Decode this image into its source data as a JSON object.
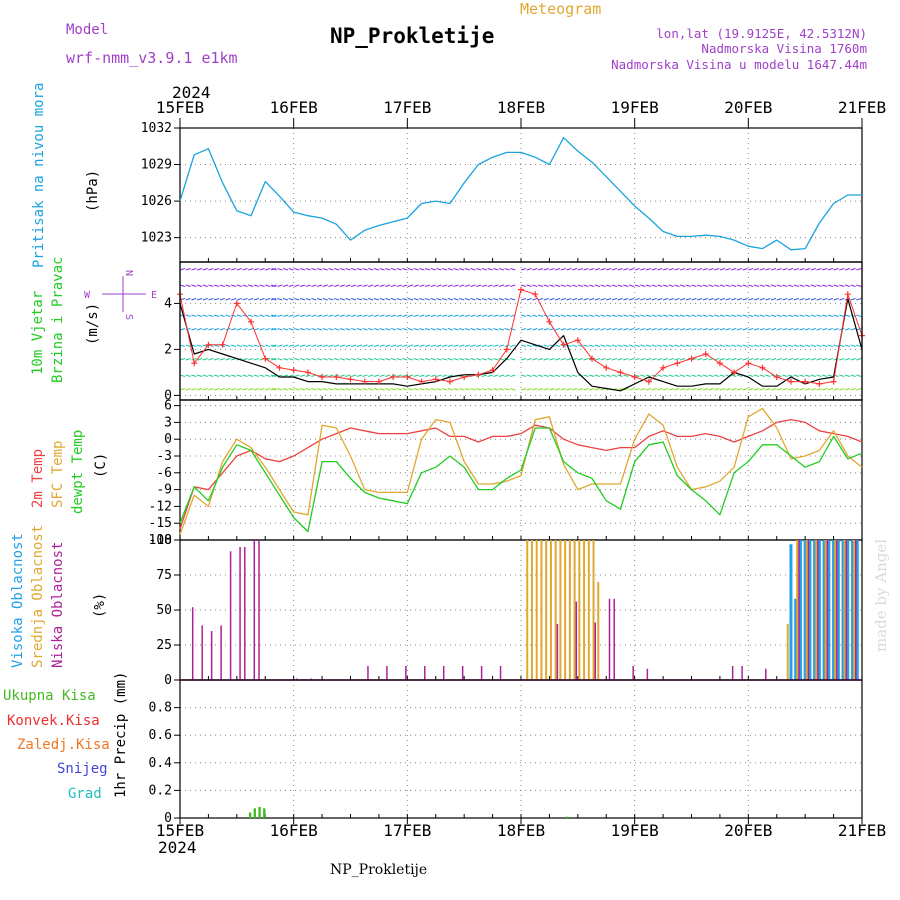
{
  "header": {
    "model_label": "Model",
    "model_name": "wrf-nmm_v3.9.1  e1km",
    "title": "NP_Prokletije",
    "subtitle": "Meteogram",
    "lonlat": "lon,lat (19.9125E, 42.5312N)",
    "altitude": "Nadmorska Visina 1760m",
    "model_altitude": "Nadmorska Visina u modelu 1647.44m",
    "year_top": "2024",
    "year_bottom": "2024",
    "footer": "NP_Prokletije",
    "watermark": "made by Angel"
  },
  "colors": {
    "pressure": "#1aa3df",
    "wind_black": "#000000",
    "wind_red": "#ff3030",
    "t2m": "#ef4040",
    "sfc": "#e0a830",
    "dewpt": "#22cc22",
    "cloud_high": "#22a0e8",
    "cloud_mid": "#e0a830",
    "cloud_low": "#b0209a",
    "cloud_extra": "#66cc44",
    "precip_total": "#44bb22",
    "precip_conv": "#ee3030",
    "precip_frz": "#ee7722",
    "snow": "#4444dd",
    "hail": "#22bbbb",
    "purple_text": "#a040c8",
    "orange_text": "#e0a830"
  },
  "chart_data": [
    {
      "type": "line",
      "title": "Pritisak na nivou mora",
      "ylabel": "(hPa)",
      "ylim": [
        1021,
        1032
      ],
      "yticks": [
        1023,
        1026,
        1029,
        1032
      ],
      "ytick_labels": [
        "1023",
        "1026",
        "1029",
        "1032"
      ],
      "x_hours": [
        0,
        3,
        6,
        9,
        12,
        15,
        18,
        21,
        24,
        27,
        30,
        33,
        36,
        39,
        42,
        45,
        48,
        51,
        54,
        57,
        60,
        63,
        66,
        69,
        72,
        75,
        78,
        81,
        84,
        87,
        90,
        93,
        96,
        99,
        102,
        105,
        108,
        111,
        114,
        117,
        120,
        123,
        126,
        129,
        132,
        135,
        138,
        141,
        144
      ],
      "series": [
        {
          "name": "Pritisak na nivou mora",
          "values": [
            1026.0,
            1029.8,
            1030.3,
            1027.5,
            1025.2,
            1024.8,
            1027.6,
            1026.4,
            1025.1,
            1024.8,
            1024.6,
            1024.1,
            1022.8,
            1023.6,
            1024.0,
            1024.3,
            1024.6,
            1025.8,
            1026.0,
            1025.8,
            1027.5,
            1029.0,
            1029.6,
            1030.0,
            1030.0,
            1029.6,
            1029.0,
            1031.2,
            1030.1,
            1029.2,
            1028.0,
            1026.8,
            1025.6,
            1024.6,
            1023.5,
            1023.1,
            1023.1,
            1023.2,
            1023.1,
            1022.8,
            1022.3,
            1022.1,
            1022.8,
            1022.0,
            1022.1,
            1024.2,
            1025.8,
            1026.5,
            1026.5
          ]
        }
      ]
    },
    {
      "type": "line",
      "title": "10m Vjetar Brzina i Pravac",
      "ylabel": "(m/s)",
      "ylim": [
        -0.2,
        5.8
      ],
      "yticks": [
        0,
        2,
        4
      ],
      "ytick_labels": [
        "0",
        "2",
        "4"
      ],
      "compass": {
        "n": "N",
        "s": "S",
        "e": "E",
        "w": "W"
      },
      "x_hours": [
        0,
        3,
        6,
        9,
        12,
        15,
        18,
        21,
        24,
        27,
        30,
        33,
        36,
        39,
        42,
        45,
        48,
        51,
        54,
        57,
        60,
        63,
        66,
        69,
        72,
        75,
        78,
        81,
        84,
        87,
        90,
        93,
        96,
        99,
        102,
        105,
        108,
        111,
        114,
        117,
        120,
        123,
        126,
        129,
        132,
        135,
        138,
        141,
        144
      ],
      "series": [
        {
          "name": "",
          "values": [
            4.0,
            1.8,
            2.0,
            1.8,
            1.6,
            1.4,
            1.2,
            0.8,
            0.8,
            0.6,
            0.6,
            0.5,
            0.5,
            0.5,
            0.5,
            0.5,
            0.4,
            0.5,
            0.6,
            0.8,
            0.9,
            0.9,
            1.0,
            1.6,
            2.4,
            2.2,
            2.0,
            2.6,
            1.0,
            0.4,
            0.3,
            0.2,
            0.5,
            0.8,
            0.6,
            0.4,
            0.4,
            0.5,
            0.5,
            1.0,
            0.8,
            0.4,
            0.4,
            0.8,
            0.5,
            0.7,
            0.8,
            4.2,
            2.0
          ]
        },
        {
          "name": "",
          "values": [
            4.4,
            1.4,
            2.2,
            2.2,
            4.0,
            3.2,
            1.6,
            1.2,
            1.1,
            1.0,
            0.8,
            0.8,
            0.7,
            0.6,
            0.6,
            0.8,
            0.8,
            0.6,
            0.7,
            0.6,
            0.8,
            0.9,
            1.1,
            2.0,
            4.6,
            4.4,
            3.2,
            2.2,
            2.4,
            1.6,
            1.2,
            1.0,
            0.8,
            0.6,
            1.2,
            1.4,
            1.6,
            1.8,
            1.4,
            1.0,
            1.4,
            1.2,
            0.8,
            0.6,
            0.6,
            0.5,
            0.6,
            4.4,
            2.6
          ]
        }
      ]
    },
    {
      "type": "line",
      "ylabel": "(C)",
      "ylim": [
        -18,
        7
      ],
      "yticks": [
        -18,
        -15,
        -12,
        -9,
        -6,
        -3,
        0,
        3,
        6
      ],
      "ytick_labels": [
        "-18",
        "-15",
        "-12",
        "-9",
        "-6",
        "-3",
        "0",
        "3",
        "6"
      ],
      "x_hours": [
        0,
        3,
        6,
        9,
        12,
        15,
        18,
        21,
        24,
        27,
        30,
        33,
        36,
        39,
        42,
        45,
        48,
        51,
        54,
        57,
        60,
        63,
        66,
        69,
        72,
        75,
        78,
        81,
        84,
        87,
        90,
        93,
        96,
        99,
        102,
        105,
        108,
        111,
        114,
        117,
        120,
        123,
        126,
        129,
        132,
        135,
        138,
        141,
        144
      ],
      "series": [
        {
          "name": "2m Temp",
          "values": [
            -16.0,
            -8.5,
            -9.0,
            -6.0,
            -3.0,
            -2.0,
            -3.5,
            -4.0,
            -3.0,
            -1.5,
            0.0,
            1.0,
            2.0,
            1.5,
            1.0,
            1.0,
            1.0,
            1.5,
            2.0,
            0.5,
            0.5,
            -0.5,
            0.5,
            0.5,
            1.0,
            2.5,
            2.0,
            0.0,
            -1.0,
            -1.5,
            -2.0,
            -1.5,
            -1.5,
            0.5,
            1.5,
            0.5,
            0.5,
            1.0,
            0.5,
            -0.5,
            0.5,
            1.5,
            3.0,
            3.5,
            3.0,
            1.5,
            1.0,
            0.5,
            -0.5
          ]
        },
        {
          "name": "SFC Temp",
          "values": [
            -17.0,
            -10.0,
            -12.0,
            -4.0,
            0.0,
            -1.5,
            -5.0,
            -9.0,
            -13.0,
            -13.5,
            2.5,
            2.0,
            -3.0,
            -9.0,
            -9.5,
            -9.5,
            -9.5,
            0.0,
            3.5,
            3.0,
            -4.0,
            -8.0,
            -8.0,
            -7.5,
            -6.5,
            3.5,
            4.0,
            -4.5,
            -9.0,
            -8.0,
            -8.0,
            -8.0,
            0.0,
            4.5,
            2.5,
            -5.0,
            -9.0,
            -8.5,
            -7.5,
            -5.0,
            4.0,
            5.5,
            2.0,
            -3.5,
            -3.0,
            -2.0,
            1.5,
            -3.0,
            -5.0
          ]
        },
        {
          "name": "dewpt Temp",
          "values": [
            -15.0,
            -8.5,
            -11.0,
            -5.0,
            -1.0,
            -2.0,
            -6.0,
            -10.0,
            -14.0,
            -16.5,
            -4.0,
            -4.0,
            -7.0,
            -9.5,
            -10.5,
            -11.0,
            -11.5,
            -6.0,
            -5.0,
            -3.0,
            -5.0,
            -9.0,
            -9.0,
            -7.0,
            -5.5,
            2.0,
            2.0,
            -4.0,
            -6.0,
            -7.0,
            -11.0,
            -12.5,
            -4.0,
            -1.0,
            -0.5,
            -6.5,
            -9.0,
            -11.0,
            -13.5,
            -6.0,
            -4.0,
            -1.0,
            -1.0,
            -3.0,
            -5.0,
            -4.0,
            0.5,
            -3.5,
            -2.5
          ]
        }
      ]
    },
    {
      "type": "bar",
      "ylabel": "(%)",
      "ylim": [
        0,
        100
      ],
      "yticks": [
        0,
        25,
        50,
        75,
        100
      ],
      "ytick_labels": [
        "0",
        "25",
        "50",
        "75",
        "100"
      ],
      "series": [
        {
          "name": "Visoka Oblacnost",
          "x_hours": [
            129,
            130,
            131,
            132,
            133,
            134,
            135,
            136,
            137,
            138,
            139,
            140,
            141,
            142,
            143
          ],
          "values": [
            97,
            58,
            100,
            100,
            100,
            100,
            100,
            100,
            100,
            100,
            100,
            100,
            100,
            100,
            100
          ]
        },
        {
          "name": "Srednja Oblacnost",
          "x_hours": [
            73,
            74,
            75,
            76,
            77,
            78,
            79,
            80,
            81,
            82,
            83,
            84,
            85,
            86,
            87,
            88,
            128,
            130,
            132,
            134,
            136,
            138,
            140,
            142
          ],
          "values": [
            100,
            100,
            100,
            100,
            100,
            100,
            100,
            100,
            100,
            100,
            100,
            100,
            100,
            100,
            100,
            70,
            40,
            100,
            100,
            100,
            100,
            100,
            100,
            100
          ]
        },
        {
          "name": "Niska Oblacnost",
          "x_hours": [
            3,
            5,
            7,
            9,
            11,
            13,
            14,
            16,
            17,
            25,
            28,
            40,
            44,
            48,
            52,
            56,
            60,
            64,
            68,
            80,
            84,
            88,
            91,
            92,
            96,
            99,
            117,
            119,
            124,
            131,
            133,
            135,
            137,
            139,
            141,
            143
          ],
          "values": [
            52,
            39,
            35,
            39,
            92,
            95,
            95,
            100,
            100,
            1,
            1,
            10,
            10,
            10,
            10,
            10,
            10,
            10,
            10,
            40,
            56,
            41,
            58,
            58,
            10,
            8,
            10,
            10,
            8,
            100,
            100,
            100,
            100,
            100,
            100,
            100
          ]
        }
      ]
    },
    {
      "type": "bar",
      "ylabel": "1hr Precip (mm)",
      "ylim": [
        0,
        1.0
      ],
      "yticks": [
        0,
        0.2,
        0.4,
        0.6,
        0.8
      ],
      "ytick_labels": [
        "0",
        "0.2",
        "0.4",
        "0.6",
        "0.8"
      ],
      "categories_x_hours": [
        14.8,
        15.8,
        16.8,
        17.8,
        81.8
      ],
      "series": [
        {
          "name": "Ukupna Kisa",
          "values": [
            0.04,
            0.07,
            0.08,
            0.07,
            0.01
          ]
        },
        {
          "name": "Konvek.Kisa",
          "values": [
            0,
            0,
            0,
            0,
            0
          ]
        },
        {
          "name": "Zaledj.Kisa",
          "values": [
            0,
            0,
            0,
            0,
            0
          ]
        },
        {
          "name": "Snijeg",
          "values": [
            0,
            0,
            0,
            0,
            0
          ]
        },
        {
          "name": "Grad",
          "values": [
            0,
            0,
            0,
            0,
            0
          ]
        }
      ]
    }
  ],
  "x_axis": {
    "range_hours": [
      0,
      144
    ],
    "tick_hours": [
      0,
      24,
      48,
      72,
      96,
      120,
      144
    ],
    "tick_labels": [
      "15FEB",
      "16FEB",
      "17FEB",
      "18FEB",
      "19FEB",
      "20FEB",
      "21FEB"
    ]
  },
  "labels": {
    "pressure": [
      "Pritisak na nivou mora"
    ],
    "wind": [
      "10m Vjetar",
      "Brzina i Pravac"
    ],
    "temp": [
      "2m Temp",
      "SFC Temp",
      "dewpt Temp"
    ],
    "cloud": [
      "Visoka Oblacnost",
      "Srednja Oblacnost",
      "Niska Oblacnost"
    ],
    "precip": [
      "Ukupna Kisa",
      "Konvek.Kisa",
      "Zaledj.Kisa",
      "Snijeg",
      "Grad"
    ]
  }
}
